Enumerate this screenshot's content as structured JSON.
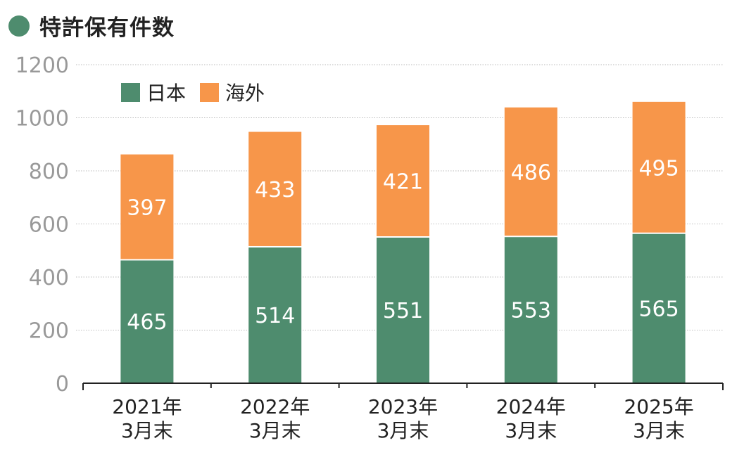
{
  "colors": {
    "japan": "#4e8c6e",
    "overseas": "#f7964a",
    "axis_text": "#999999",
    "grid": "#bbbbbb"
  },
  "chart_data": {
    "type": "bar",
    "stacked": true,
    "title": "特許保有件数",
    "categories": [
      [
        "2021年",
        "3月末"
      ],
      [
        "2022年",
        "3月末"
      ],
      [
        "2023年",
        "3月末"
      ],
      [
        "2024年",
        "3月末"
      ],
      [
        "2025年",
        "3月末"
      ]
    ],
    "series": [
      {
        "name": "日本",
        "values": [
          465,
          514,
          551,
          553,
          565
        ]
      },
      {
        "name": "海外",
        "values": [
          397,
          433,
          421,
          486,
          495
        ]
      }
    ],
    "ylim": [
      0,
      1200
    ],
    "yticks": [
      0,
      200,
      400,
      600,
      800,
      1000,
      1200
    ],
    "grid": true,
    "legend": "top-left",
    "xlabel": "",
    "ylabel": ""
  }
}
